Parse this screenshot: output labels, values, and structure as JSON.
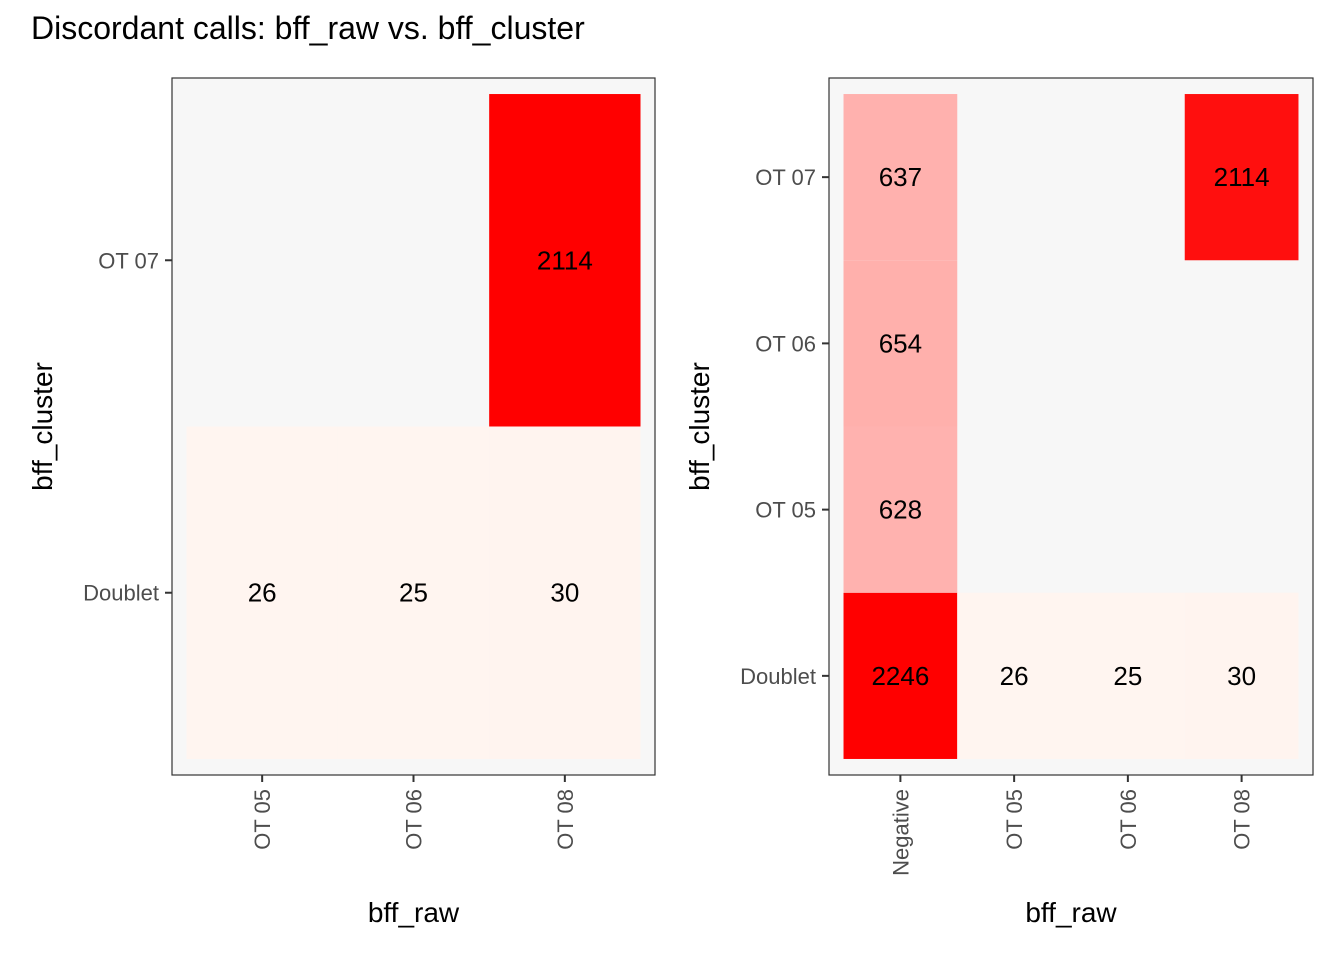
{
  "title": "Discordant calls: bff_raw vs. bff_cluster",
  "chart_data": [
    {
      "type": "heatmap",
      "xlabel": "bff_raw",
      "ylabel": "bff_cluster",
      "x_categories": [
        "OT 05",
        "OT 06",
        "OT 08"
      ],
      "y_categories": [
        "Doublet",
        "OT 07"
      ],
      "cells": [
        {
          "x": "OT 05",
          "y": "Doublet",
          "value": 26
        },
        {
          "x": "OT 06",
          "y": "Doublet",
          "value": 25
        },
        {
          "x": "OT 08",
          "y": "Doublet",
          "value": 30
        },
        {
          "x": "OT 08",
          "y": "OT 07",
          "value": 2114
        }
      ],
      "fill_low": "#fff5f0",
      "fill_high": "#ff0000",
      "panel_background": "#f7f7f7",
      "grid": false
    },
    {
      "type": "heatmap",
      "xlabel": "bff_raw",
      "ylabel": "bff_cluster",
      "x_categories": [
        "Negative",
        "OT 05",
        "OT 06",
        "OT 08"
      ],
      "y_categories": [
        "Doublet",
        "OT 05",
        "OT 06",
        "OT 07"
      ],
      "cells": [
        {
          "x": "Negative",
          "y": "Doublet",
          "value": 2246
        },
        {
          "x": "Negative",
          "y": "OT 05",
          "value": 628
        },
        {
          "x": "Negative",
          "y": "OT 06",
          "value": 654
        },
        {
          "x": "Negative",
          "y": "OT 07",
          "value": 637
        },
        {
          "x": "OT 05",
          "y": "Doublet",
          "value": 26
        },
        {
          "x": "OT 06",
          "y": "Doublet",
          "value": 25
        },
        {
          "x": "OT 08",
          "y": "Doublet",
          "value": 30
        },
        {
          "x": "OT 08",
          "y": "OT 07",
          "value": 2114
        }
      ],
      "fill_low": "#fff5f0",
      "fill_high": "#ff0000",
      "panel_background": "#f7f7f7",
      "grid": false
    }
  ]
}
